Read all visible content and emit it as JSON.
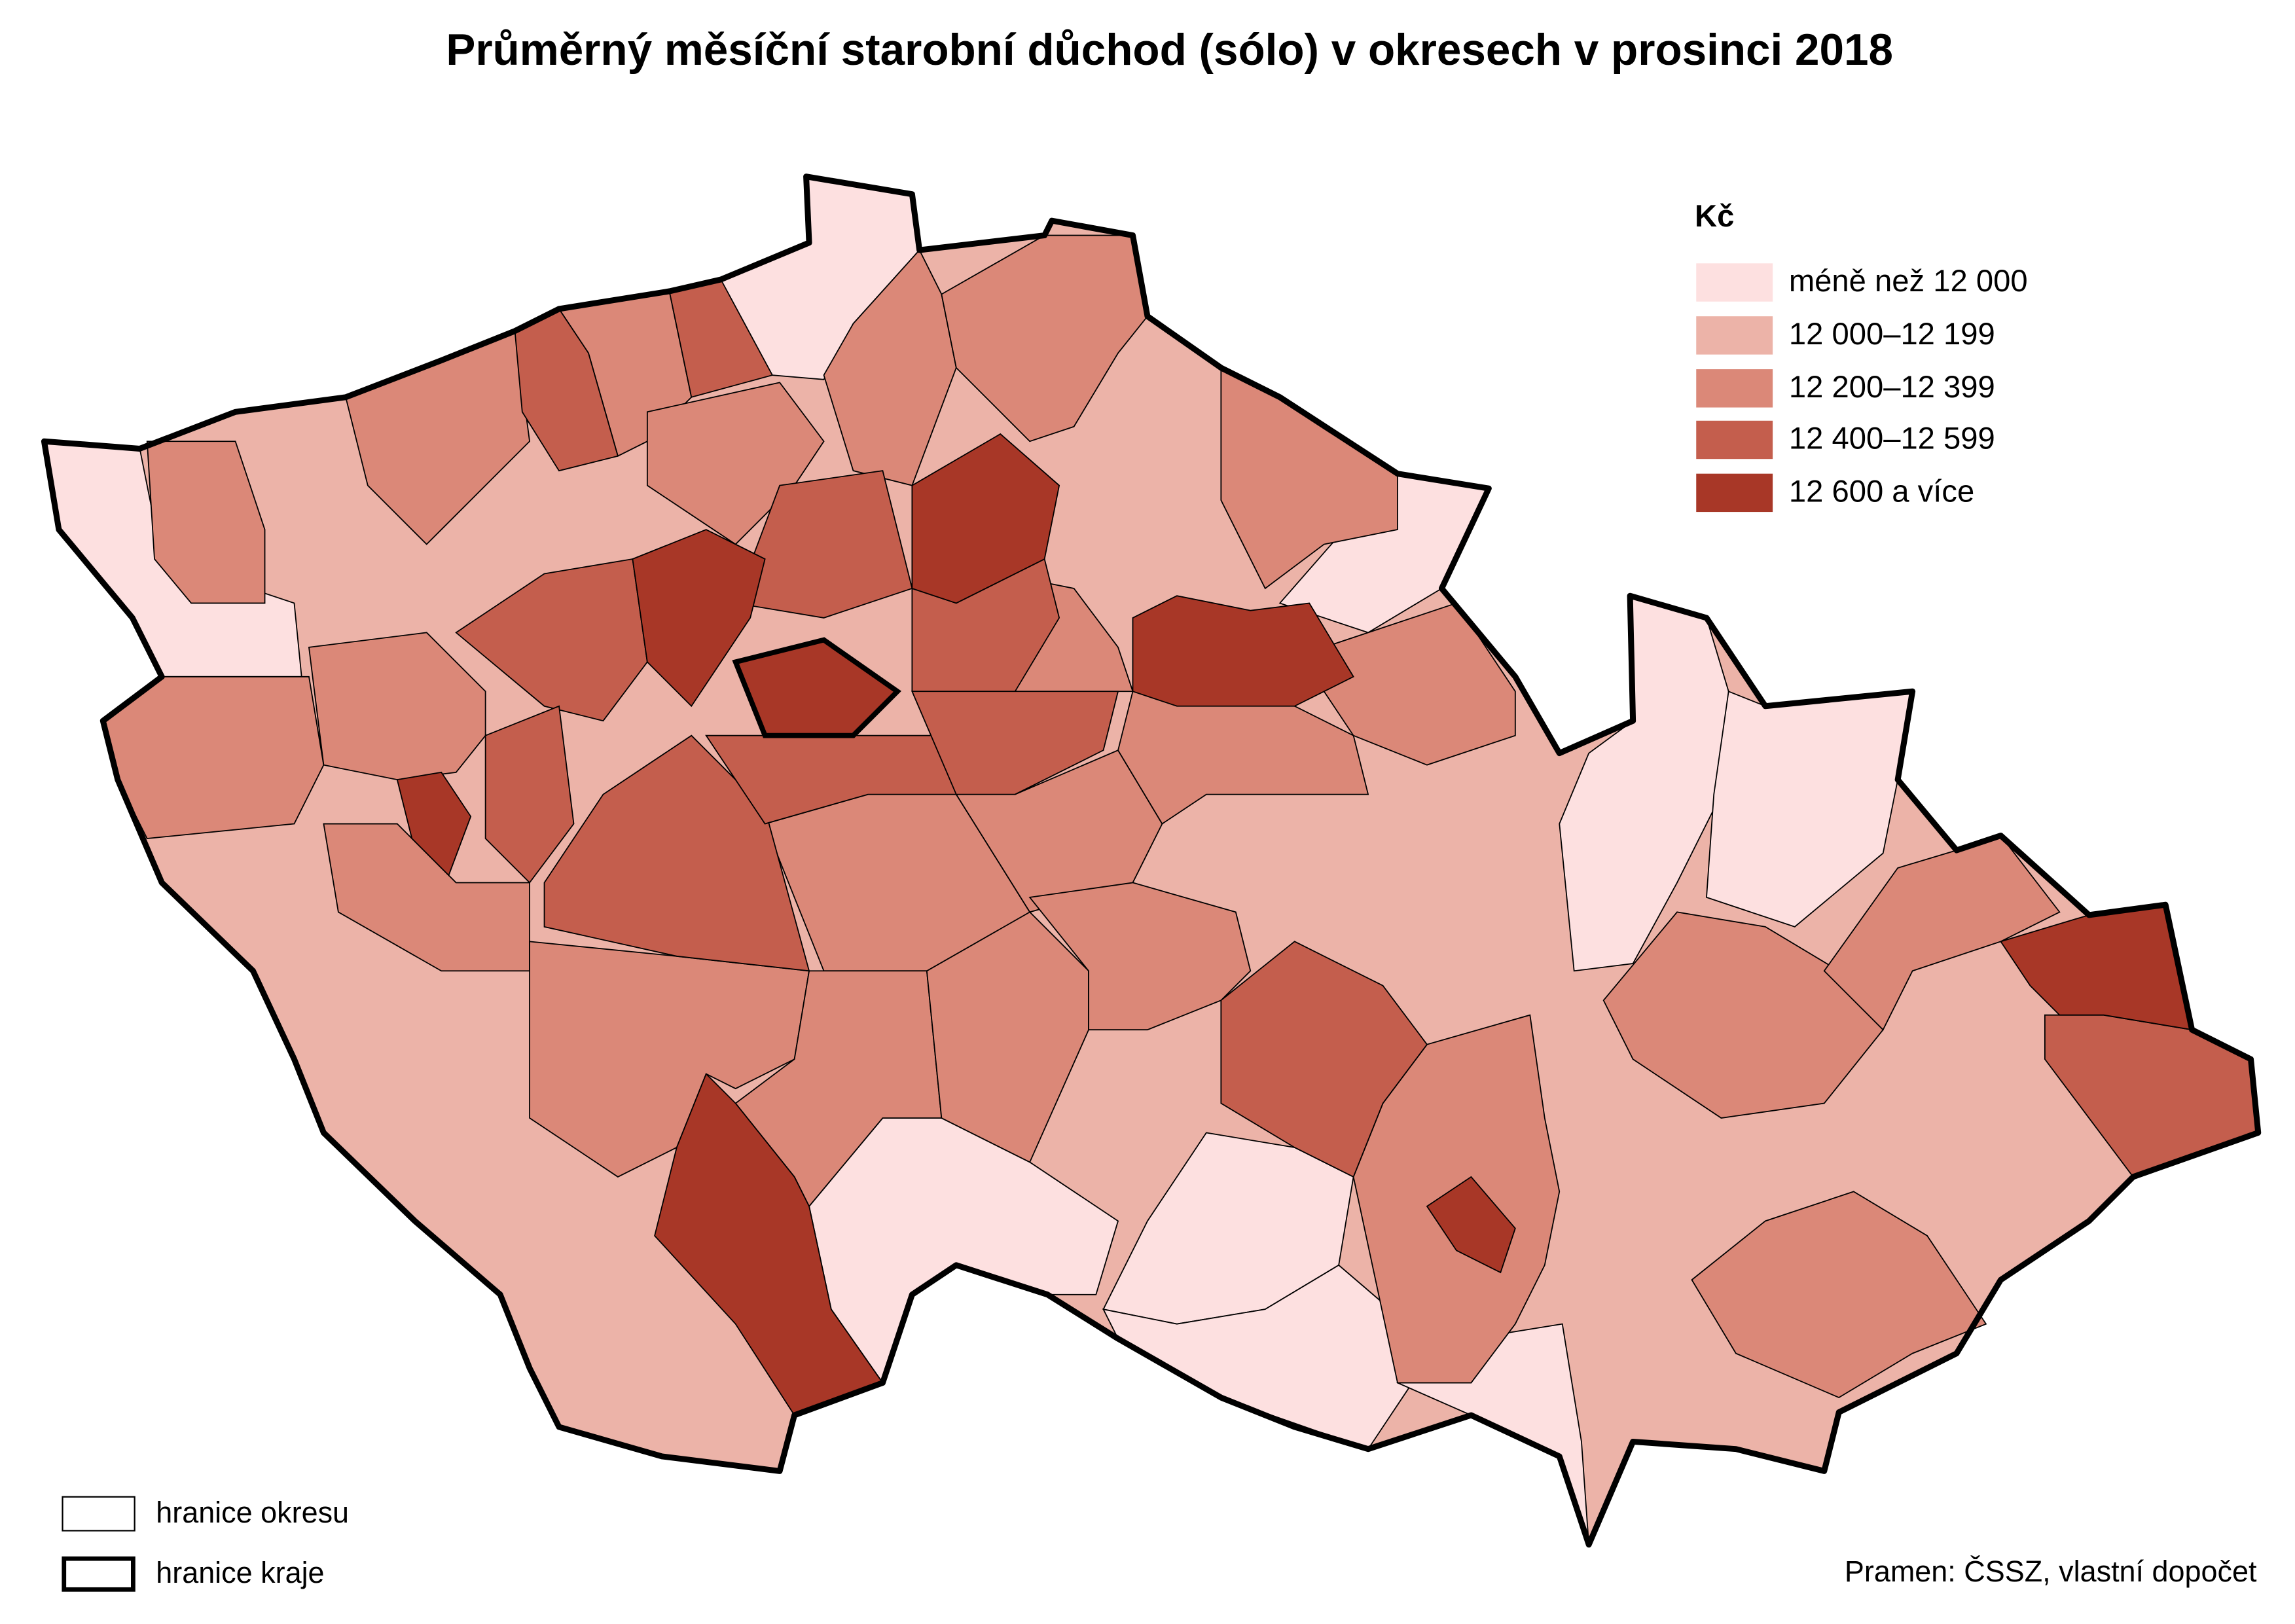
{
  "title": "Průměrný měsíční starobní důchod (sólo) v okresech v prosinci 2018",
  "map": {
    "type": "choropleth",
    "unit_label": "Kč",
    "legend": [
      {
        "label": "méně než 12 000",
        "color": "#fde0e0"
      },
      {
        "label": "12 000–12 199",
        "color": "#ecb3a8"
      },
      {
        "label": "12 200–12 399",
        "color": "#db8878"
      },
      {
        "label": "12 400–12 599",
        "color": "#c45e4d"
      },
      {
        "label": "12 600 a více",
        "color": "#a83727"
      }
    ],
    "border_legend": [
      {
        "label": "hranice okresu"
      },
      {
        "label": "hranice kraje"
      }
    ]
  },
  "source": "Pramen: ČSSZ, vlastní dopočet"
}
